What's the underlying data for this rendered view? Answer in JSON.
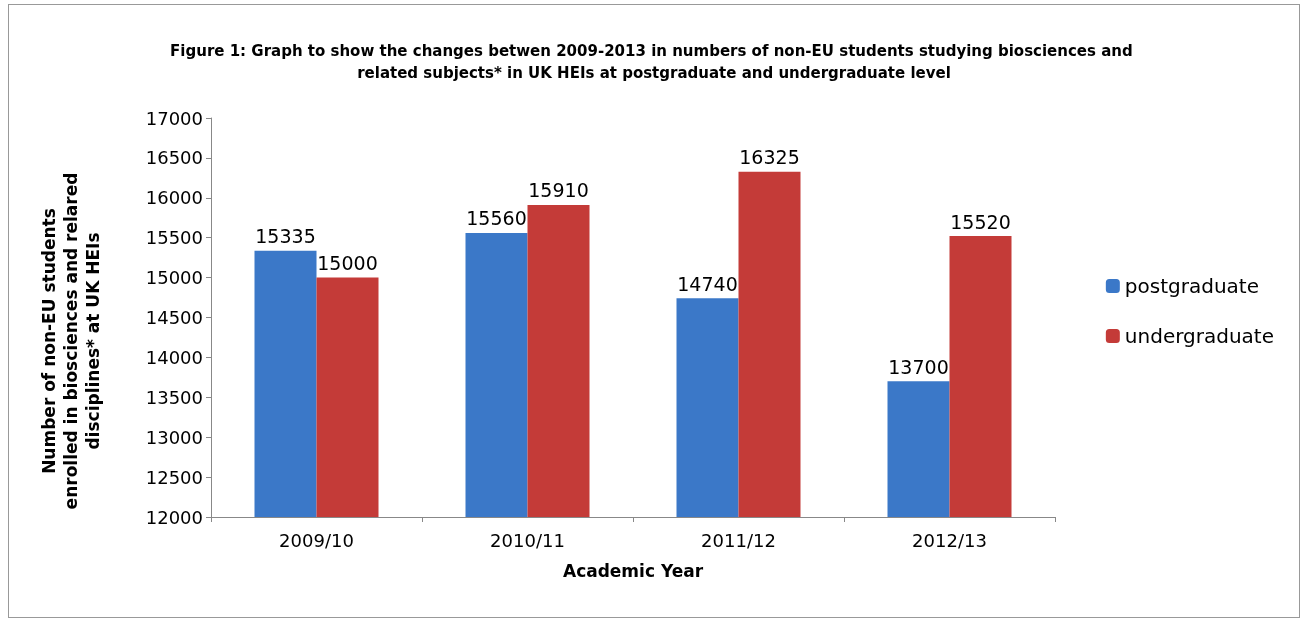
{
  "chart_data": {
    "type": "bar",
    "title": "Figure 1: Graph to show the changes betwen 2009-2013 in numbers of non-EU students studying biosciences and related subjects* in UK HEIs at postgraduate and undergraduate level",
    "xlabel": "Academic Year",
    "ylabel": "Number of non-EU students enrolled in biosciences and relared disciplines* at UK HEIs",
    "categories": [
      "2009/10",
      "2010/11",
      "2011/12",
      "2012/13"
    ],
    "series": [
      {
        "name": "postgraduate",
        "color": "#3b78c8",
        "values": [
          15335,
          15560,
          14740,
          13700
        ]
      },
      {
        "name": "undergraduate",
        "color": "#c43b38",
        "values": [
          15000,
          15910,
          16325,
          15520
        ]
      }
    ],
    "ylim": [
      12000,
      17000
    ],
    "yticks": [
      12000,
      12500,
      13000,
      13500,
      14000,
      14500,
      15000,
      15500,
      16000,
      16500,
      17000
    ],
    "grid": false,
    "legend": "right",
    "data_labels": true
  }
}
